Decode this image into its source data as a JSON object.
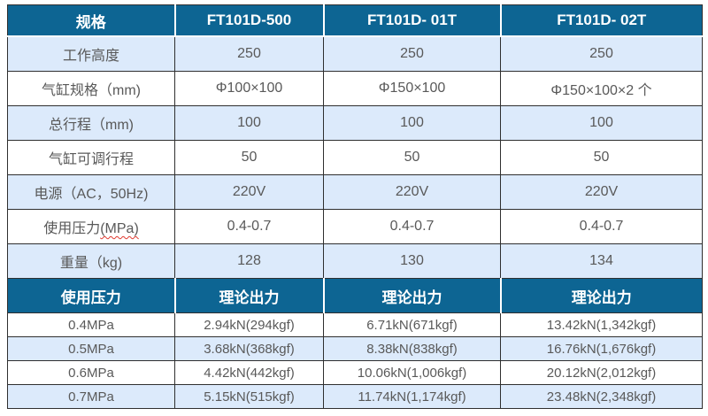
{
  "colors": {
    "header_bg": "#0d6593",
    "header_text": "#ffffff",
    "row_bg": "#ffffff",
    "row_alt_bg": "#dceafb",
    "border": "#2f2f2f",
    "body_text": "#595959",
    "squiggle": "#e0392f"
  },
  "spec_table": {
    "header": [
      "规格",
      "FT101D-500",
      "FT101D- 01T",
      "FT101D- 02T"
    ],
    "rows": [
      {
        "label": "工作高度",
        "values": [
          "250",
          "250",
          "250"
        ]
      },
      {
        "label": "气缸规格（mm)",
        "values": [
          "Φ100×100",
          "Φ150×100",
          "Φ150×100×2 个"
        ]
      },
      {
        "label": "总行程（mm)",
        "values": [
          "100",
          "100",
          "100"
        ]
      },
      {
        "label": "气缸可调行程",
        "values": [
          "50",
          "50",
          "50"
        ]
      },
      {
        "label": "电源（AC，50Hz)",
        "values": [
          "220V",
          "220V",
          "220V"
        ]
      },
      {
        "label_prefix": "使用压力",
        "label_marked": "(MPa)",
        "values": [
          "0.4-0.7",
          "0.4-0.7",
          "0.4-0.7"
        ]
      },
      {
        "label": "重量（kg)",
        "values": [
          "128",
          "130",
          "134"
        ]
      }
    ]
  },
  "force_table": {
    "header": [
      "使用压力",
      "理论出力",
      "理论出力",
      "理论出力"
    ],
    "rows": [
      {
        "label": "0.4MPa",
        "values": [
          "2.94kN(294kgf)",
          "6.71kN(671kgf)",
          "13.42kN(1,342kgf)"
        ]
      },
      {
        "label": "0.5MPa",
        "values": [
          "3.68kN(368kgf)",
          "8.38kN(838kgf)",
          "16.76kN(1,676kgf)"
        ]
      },
      {
        "label": "0.6MPa",
        "values": [
          "4.42kN(442kgf)",
          "10.06kN(1,006kgf)",
          "20.12kN(2,012kgf)"
        ]
      },
      {
        "label": "0.7MPa",
        "values": [
          "5.15kN(515kgf)",
          "11.74kN(1,174kgf)",
          "23.48kN(2,348kgf)"
        ]
      }
    ]
  }
}
